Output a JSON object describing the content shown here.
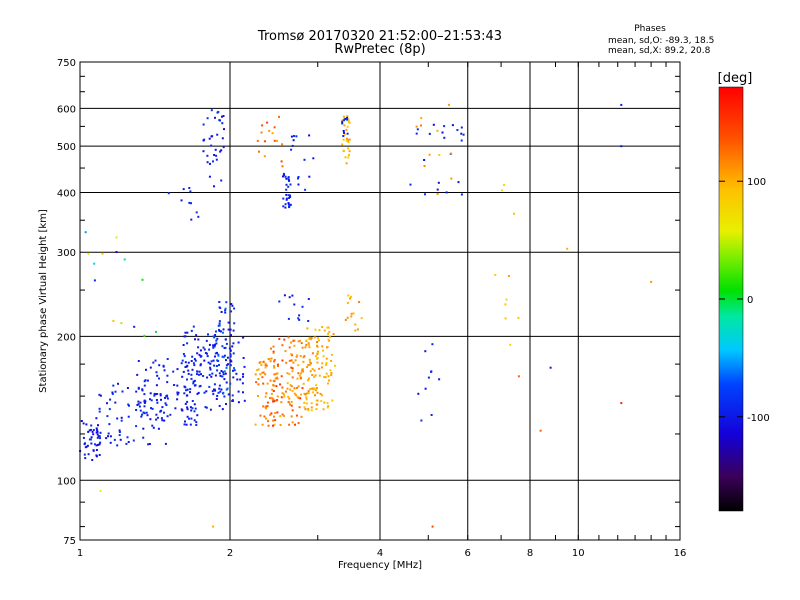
{
  "chart_data": {
    "type": "scatter",
    "title": "Tromsø 20170320 21:52:00–21:53:43",
    "subtitle": "RwPretec (8p)",
    "xlabel": "Frequency [MHz]",
    "ylabel": "Stationary phase Virtual Height [km]",
    "x_scale": "log",
    "y_scale": "log",
    "xlim": [
      1,
      16
    ],
    "ylim": [
      75,
      750
    ],
    "x_ticks": [
      1,
      2,
      4,
      6,
      8,
      10,
      16
    ],
    "x_tick_labels": [
      "1",
      "2",
      "4",
      "6",
      "8",
      "10",
      "16"
    ],
    "y_ticks": [
      75,
      100,
      200,
      300,
      400,
      500,
      600,
      750
    ],
    "y_tick_labels": [
      "75",
      "100",
      "200",
      "300",
      "400",
      "500",
      "600",
      "750"
    ],
    "grid": true,
    "phases": {
      "heading": "Phases",
      "line_o": "mean, sd,O: -89.3, 18.5",
      "line_x": "mean, sd,X:  89.2, 20.8"
    },
    "colorbar": {
      "label": "[deg]",
      "range": [
        -180,
        180
      ],
      "ticks": [
        100,
        0,
        -100
      ],
      "tick_labels": [
        "100",
        "0",
        "-100"
      ]
    },
    "clusters": [
      {
        "f": [
          1.0,
          1.1
        ],
        "h": [
          108,
          135
        ],
        "phase": [
          -115,
          -90
        ],
        "n": 38
      },
      {
        "f": [
          1.05,
          1.5
        ],
        "h": [
          118,
          160
        ],
        "phase": [
          -110,
          -80
        ],
        "n": 90
      },
      {
        "f": [
          1.3,
          1.75
        ],
        "h": [
          130,
          180
        ],
        "phase": [
          -110,
          -85
        ],
        "n": 90
      },
      {
        "f": [
          1.6,
          2.0
        ],
        "h": [
          140,
          210
        ],
        "phase": [
          -110,
          -80
        ],
        "n": 130
      },
      {
        "f": [
          1.85,
          2.05
        ],
        "h": [
          150,
          240
        ],
        "phase": [
          -110,
          -60
        ],
        "n": 60
      },
      {
        "f": [
          2.0,
          2.15
        ],
        "h": [
          145,
          200
        ],
        "phase": [
          -110,
          -90
        ],
        "n": 25
      },
      {
        "f": [
          2.25,
          2.55
        ],
        "h": [
          130,
          180
        ],
        "phase": [
          95,
          140
        ],
        "n": 70
      },
      {
        "f": [
          2.4,
          2.8
        ],
        "h": [
          130,
          200
        ],
        "phase": [
          100,
          160
        ],
        "n": 70
      },
      {
        "f": [
          2.6,
          3.05
        ],
        "h": [
          140,
          200
        ],
        "phase": [
          95,
          125
        ],
        "n": 80
      },
      {
        "f": [
          2.85,
          3.25
        ],
        "h": [
          140,
          210
        ],
        "phase": [
          85,
          110
        ],
        "n": 75
      },
      {
        "f": [
          2.5,
          2.9
        ],
        "h": [
          215,
          245
        ],
        "phase": [
          -110,
          -80
        ],
        "n": 12
      },
      {
        "f": [
          2.55,
          2.65
        ],
        "h": [
          370,
          440
        ],
        "phase": [
          -110,
          -80
        ],
        "n": 30
      },
      {
        "f": [
          2.65,
          2.95
        ],
        "h": [
          400,
          530
        ],
        "phase": [
          -110,
          -80
        ],
        "n": 14
      },
      {
        "f": [
          2.25,
          2.55
        ],
        "h": [
          440,
          580
        ],
        "phase": [
          100,
          150
        ],
        "n": 16
      },
      {
        "f": [
          3.35,
          3.48
        ],
        "h": [
          460,
          580
        ],
        "phase": [
          80,
          110
        ],
        "n": 28
      },
      {
        "f": [
          3.35,
          3.45
        ],
        "h": [
          520,
          580
        ],
        "phase": [
          -110,
          -80
        ],
        "n": 10
      },
      {
        "f": [
          1.75,
          1.95
        ],
        "h": [
          400,
          600
        ],
        "phase": [
          -110,
          -80
        ],
        "n": 35
      },
      {
        "f": [
          1.5,
          1.75
        ],
        "h": [
          350,
          420
        ],
        "phase": [
          -110,
          -80
        ],
        "n": 10
      },
      {
        "f": [
          3.4,
          3.7
        ],
        "h": [
          205,
          245
        ],
        "phase": [
          90,
          120
        ],
        "n": 14
      },
      {
        "f": [
          4.6,
          5.9
        ],
        "h": [
          380,
          560
        ],
        "phase": [
          -110,
          -80
        ],
        "n": 22
      },
      {
        "f": [
          4.6,
          5.6
        ],
        "h": [
          390,
          580
        ],
        "phase": [
          80,
          120
        ],
        "n": 10
      },
      {
        "f": [
          4.7,
          5.3
        ],
        "h": [
          125,
          195
        ],
        "phase": [
          -110,
          -80
        ],
        "n": 10
      },
      {
        "f": [
          6.8,
          7.6
        ],
        "h": [
          190,
          430
        ],
        "phase": [
          70,
          110
        ],
        "n": 10
      },
      {
        "f": [
          1.0,
          1.5
        ],
        "h": [
          200,
          400
        ],
        "phase": [
          -110,
          100
        ],
        "n": 14
      }
    ],
    "points": [
      {
        "f": 12.2,
        "h": 610,
        "phase": -100
      },
      {
        "f": 12.2,
        "h": 500,
        "phase": -100
      },
      {
        "f": 12.2,
        "h": 145,
        "phase": 160
      },
      {
        "f": 14.0,
        "h": 260,
        "phase": 110
      },
      {
        "f": 9.5,
        "h": 305,
        "phase": 100
      },
      {
        "f": 8.8,
        "h": 172,
        "phase": -100
      },
      {
        "f": 8.4,
        "h": 127,
        "phase": 130
      },
      {
        "f": 7.6,
        "h": 165,
        "phase": 130
      },
      {
        "f": 5.1,
        "h": 80,
        "phase": 140
      },
      {
        "f": 1.1,
        "h": 95,
        "phase": 60
      },
      {
        "f": 1.85,
        "h": 80,
        "phase": 100
      },
      {
        "f": 5.5,
        "h": 610,
        "phase": 110
      }
    ]
  }
}
